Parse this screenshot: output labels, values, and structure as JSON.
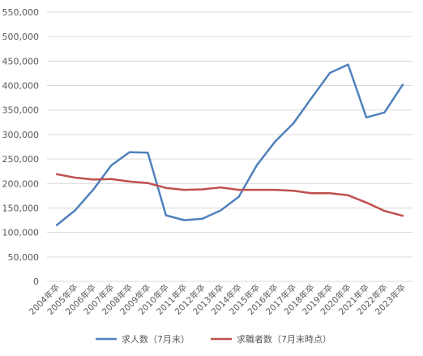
{
  "chart_data": {
    "type": "line",
    "title": "",
    "xlabel": "",
    "ylabel": "",
    "categories": [
      "2004年卒",
      "2005年卒",
      "2006年卒",
      "2007年卒",
      "2008年卒",
      "2009年卒",
      "2010年卒",
      "2011年卒",
      "2012年卒",
      "2013年卒",
      "2014年卒",
      "2015年卒",
      "2016年卒",
      "2017年卒",
      "2018年卒",
      "2019年卒",
      "2020年卒",
      "2021年卒",
      "2022年卒",
      "2023年卒"
    ],
    "ylim": [
      0,
      550000
    ],
    "yticks": [
      0,
      50000,
      100000,
      150000,
      200000,
      250000,
      300000,
      350000,
      400000,
      450000,
      500000,
      550000
    ],
    "ytick_labels": [
      "0",
      "50,000",
      "100,000",
      "150,000",
      "200,000",
      "250,000",
      "300,000",
      "350,000",
      "400,000",
      "450,000",
      "500,000",
      "550,000"
    ],
    "grid": true,
    "legend_position": "bottom",
    "series": [
      {
        "name": "求人数（7月末）",
        "color": "#4f81bd",
        "values": [
          115000,
          145000,
          187000,
          237000,
          264000,
          263000,
          135000,
          125000,
          128000,
          145000,
          173000,
          238000,
          286000,
          323000,
          375000,
          426000,
          443000,
          335000,
          345000,
          402000
        ]
      },
      {
        "name": "求職者数（7月末時点）",
        "color": "#c0504d",
        "values": [
          219000,
          212000,
          208000,
          209000,
          204000,
          201000,
          191000,
          187000,
          188000,
          192000,
          187000,
          187000,
          187000,
          185000,
          180000,
          180000,
          176000,
          161000,
          144000,
          134000
        ]
      }
    ]
  }
}
